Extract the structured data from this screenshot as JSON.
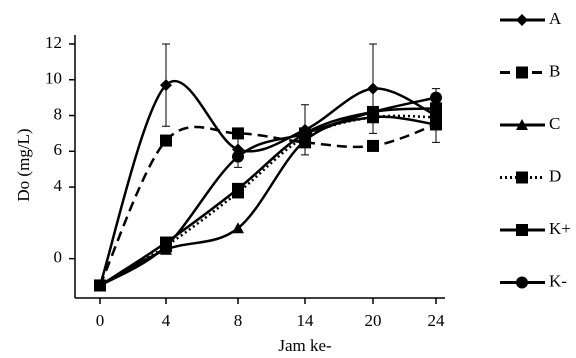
{
  "chart_data": {
    "type": "line",
    "x_label": "Jam ke-",
    "y_label": "Do (mg/L)",
    "categories": [
      "0",
      "4",
      "8",
      "14",
      "20",
      "24"
    ],
    "ylim": [
      -2.2,
      12.5
    ],
    "yticks": [
      0,
      4,
      6,
      8,
      10,
      12
    ],
    "series": [
      {
        "name": "A",
        "color": "#000",
        "marker": "diamond",
        "dash": "solid",
        "values": [
          -1.5,
          9.7,
          6.1,
          7.2,
          9.5,
          8.0
        ],
        "errors": [
          0,
          2.3,
          1.0,
          1.4,
          2.5,
          1.5
        ]
      },
      {
        "name": "B",
        "color": "#000",
        "marker": "square",
        "dash": "dashed",
        "values": [
          -1.5,
          6.6,
          7.0,
          6.5,
          6.3,
          7.5
        ]
      },
      {
        "name": "C",
        "color": "#000",
        "marker": "triangle",
        "dash": "solid",
        "values": [
          -1.5,
          0.5,
          1.7,
          6.6,
          7.9,
          7.5
        ]
      },
      {
        "name": "D",
        "color": "#000",
        "marker": "square",
        "dash": "dotted",
        "values": [
          -1.5,
          0.7,
          3.7,
          6.8,
          7.9,
          7.9
        ]
      },
      {
        "name": "K+",
        "color": "#000",
        "marker": "square",
        "dash": "solid",
        "values": [
          -1.5,
          0.9,
          3.9,
          7.0,
          8.2,
          8.4
        ]
      },
      {
        "name": "K-",
        "color": "#000",
        "marker": "circle",
        "dash": "solid",
        "values": [
          -1.5,
          0.7,
          5.7,
          7.0,
          8.2,
          9.0
        ]
      }
    ]
  }
}
